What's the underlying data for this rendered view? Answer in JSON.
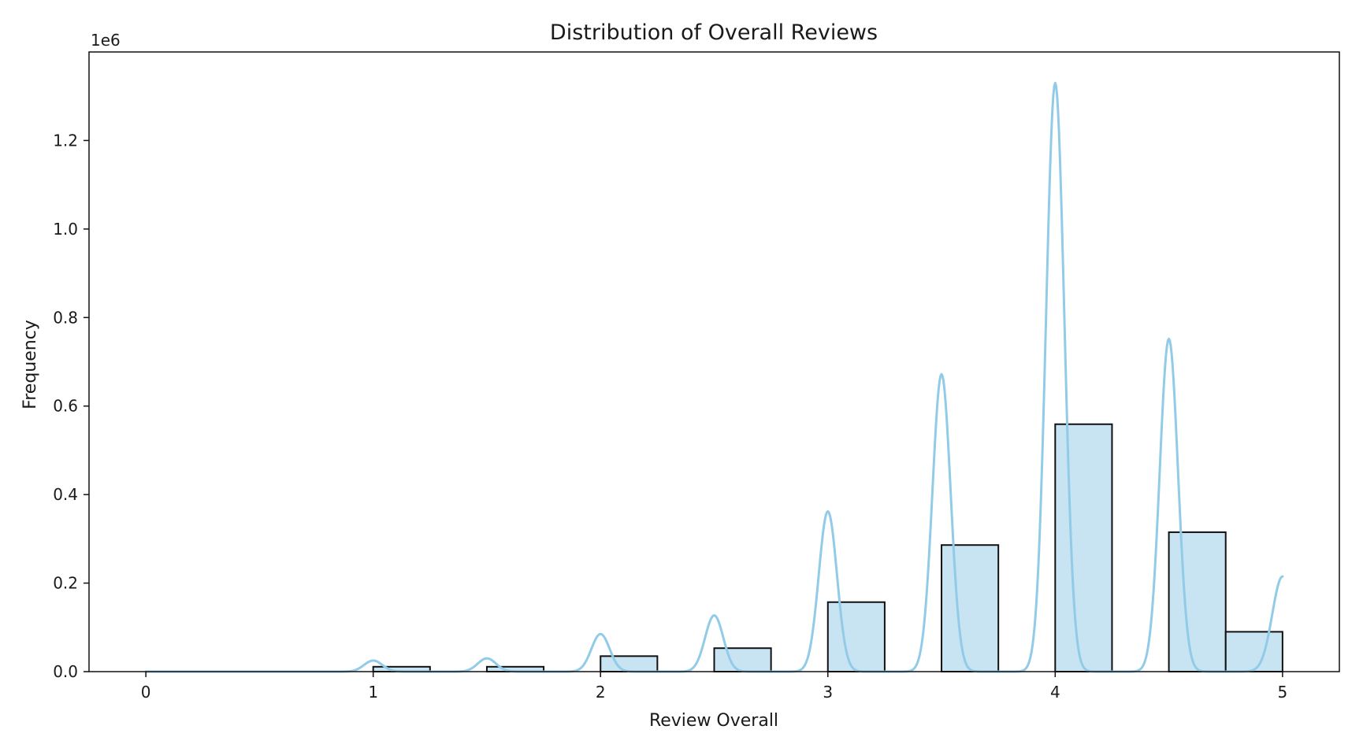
{
  "chart_data": {
    "type": "bar",
    "title": "Distribution of Overall Reviews",
    "xlabel": "Review Overall",
    "ylabel": "Frequency",
    "y_offset_label": "1e6",
    "xlim": [
      -0.25,
      5.25
    ],
    "ylim": [
      0,
      1.4
    ],
    "x_ticks": [
      0,
      1,
      2,
      3,
      4,
      5
    ],
    "x_tick_labels": [
      "0",
      "1",
      "2",
      "3",
      "4",
      "5"
    ],
    "y_ticks": [
      0,
      0.2,
      0.4,
      0.6,
      0.8,
      1.0,
      1.2
    ],
    "y_tick_labels": [
      "0.0",
      "0.2",
      "0.4",
      "0.6",
      "0.8",
      "1.0",
      "1.2"
    ],
    "grid": false,
    "colors": {
      "bar_fill": "#c8e3f1",
      "bar_edge": "#111111",
      "kde_line": "#92cbe8",
      "axes": "#111111"
    },
    "bins": [
      {
        "x0": 1.0,
        "x1": 1.25,
        "value": 0.011
      },
      {
        "x0": 1.5,
        "x1": 1.75,
        "value": 0.011
      },
      {
        "x0": 2.0,
        "x1": 2.25,
        "value": 0.035
      },
      {
        "x0": 2.5,
        "x1": 2.75,
        "value": 0.053
      },
      {
        "x0": 3.0,
        "x1": 3.25,
        "value": 0.157
      },
      {
        "x0": 3.5,
        "x1": 3.75,
        "value": 0.286
      },
      {
        "x0": 4.0,
        "x1": 4.25,
        "value": 0.559
      },
      {
        "x0": 4.5,
        "x1": 4.75,
        "value": 0.315
      },
      {
        "x0": 4.75,
        "x1": 5.0,
        "value": 0.09
      }
    ],
    "kde_peaks": [
      {
        "x": 1.0,
        "value": 0.025,
        "width": 0.04
      },
      {
        "x": 1.5,
        "value": 0.03,
        "width": 0.04
      },
      {
        "x": 2.0,
        "value": 0.085,
        "width": 0.04
      },
      {
        "x": 2.5,
        "value": 0.127,
        "width": 0.04
      },
      {
        "x": 3.0,
        "value": 0.362,
        "width": 0.04
      },
      {
        "x": 3.5,
        "value": 0.672,
        "width": 0.04
      },
      {
        "x": 4.0,
        "value": 1.33,
        "width": 0.04
      },
      {
        "x": 4.5,
        "value": 0.752,
        "width": 0.04
      },
      {
        "x": 5.0,
        "value": 0.215,
        "width": 0.045
      }
    ]
  }
}
